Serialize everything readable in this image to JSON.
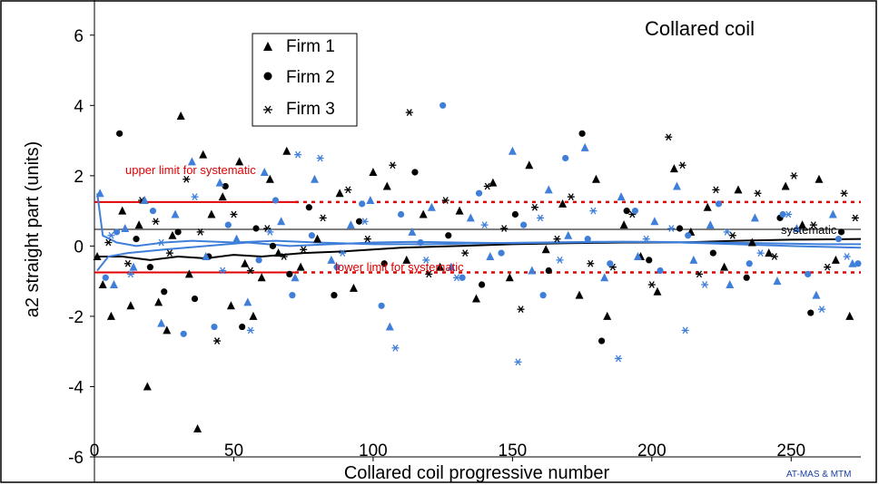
{
  "chart_data": {
    "type": "scatter",
    "title": "Collared coil",
    "xlabel": "Collared coil progressive number",
    "ylabel": "a2 straight part (units)",
    "xlim": [
      0,
      275
    ],
    "ylim": [
      -6,
      7
    ],
    "x_ticks": [
      "0",
      "50",
      "100",
      "150",
      "200",
      "250"
    ],
    "y_ticks": [
      "-6",
      "-4",
      "-2",
      "0",
      "2",
      "4",
      "6"
    ],
    "grid": false,
    "legend_position": "top-left",
    "legend": [
      {
        "name": "Firm 1",
        "marker": "triangle"
      },
      {
        "name": "Firm 2",
        "marker": "circle"
      },
      {
        "name": "Firm 3",
        "marker": "star"
      }
    ],
    "colors": {
      "black": "#000000",
      "blue": "#3f7fd9",
      "limit": "#e00000"
    },
    "limits": {
      "upper": {
        "value": 1.25,
        "label": "upper limit for systematic"
      },
      "lower": {
        "value": -0.75,
        "label": "lower limit for systematic"
      },
      "solid_until_x": 72
    },
    "systematic_label": "systematic",
    "credit": "AT-MAS & MTM",
    "series": [
      {
        "name": "Firm 1",
        "color": "#000000",
        "marker": "triangle",
        "points": [
          [
            1,
            -0.3
          ],
          [
            3,
            -1.1
          ],
          [
            6,
            -2.0
          ],
          [
            10,
            1.0
          ],
          [
            13,
            -1.7
          ],
          [
            16,
            0.6
          ],
          [
            19,
            -4.0
          ],
          [
            23,
            -1.6
          ],
          [
            26,
            -2.4
          ],
          [
            28,
            0.3
          ],
          [
            31,
            3.7
          ],
          [
            34,
            -0.8
          ],
          [
            37,
            -5.2
          ],
          [
            39,
            2.6
          ],
          [
            42,
            0.9
          ],
          [
            46,
            1.4
          ],
          [
            49,
            -1.7
          ],
          [
            52,
            2.4
          ],
          [
            54,
            -0.5
          ],
          [
            57,
            -2.0
          ],
          [
            60,
            -0.9
          ],
          [
            63,
            1.9
          ],
          [
            66,
            -0.2
          ],
          [
            69,
            2.7
          ],
          [
            74,
            -0.6
          ],
          [
            80,
            0.2
          ],
          [
            88,
            1.5
          ],
          [
            93,
            -1.2
          ],
          [
            100,
            2.1
          ],
          [
            105,
            1.7
          ],
          [
            112,
            -0.4
          ],
          [
            118,
            0.9
          ],
          [
            124,
            -0.6
          ],
          [
            131,
            1.0
          ],
          [
            137,
            -1.5
          ],
          [
            143,
            1.8
          ],
          [
            149,
            -0.9
          ],
          [
            156,
            2.3
          ],
          [
            162,
            -0.1
          ],
          [
            168,
            1.2
          ],
          [
            174,
            -1.4
          ],
          [
            180,
            1.9
          ],
          [
            184,
            -2.0
          ],
          [
            190,
            0.6
          ],
          [
            196,
            -0.3
          ],
          [
            202,
            -1.3
          ],
          [
            208,
            2.2
          ],
          [
            214,
            0.4
          ],
          [
            220,
            1.1
          ],
          [
            226,
            -0.6
          ],
          [
            231,
            1.6
          ],
          [
            236,
            0.1
          ],
          [
            242,
            -0.2
          ],
          [
            248,
            1.7
          ],
          [
            254,
            0.6
          ],
          [
            260,
            1.9
          ],
          [
            266,
            -0.4
          ],
          [
            271,
            -2.0
          ]
        ]
      },
      {
        "name": "Firm 2",
        "color": "#000000",
        "marker": "circle",
        "points": [
          [
            9,
            3.2
          ],
          [
            15,
            0.2
          ],
          [
            20,
            -0.6
          ],
          [
            25,
            -1.3
          ],
          [
            30,
            0.4
          ],
          [
            36,
            -1.5
          ],
          [
            41,
            -0.3
          ],
          [
            47,
            1.7
          ],
          [
            53,
            -2.3
          ],
          [
            58,
            0.5
          ],
          [
            64,
            0.0
          ],
          [
            70,
            -0.8
          ],
          [
            77,
            1.1
          ],
          [
            86,
            -1.4
          ],
          [
            95,
            0.7
          ],
          [
            104,
            -0.5
          ],
          [
            115,
            2.1
          ],
          [
            127,
            0.3
          ],
          [
            139,
            -1.1
          ],
          [
            151,
            0.9
          ],
          [
            163,
            -0.7
          ],
          [
            175,
            3.2
          ],
          [
            182,
            -2.7
          ],
          [
            191,
            1.0
          ],
          [
            199,
            -0.4
          ],
          [
            210,
            0.5
          ],
          [
            222,
            -0.2
          ],
          [
            234,
            -0.9
          ],
          [
            246,
            0.8
          ],
          [
            257,
            -1.9
          ],
          [
            268,
            0.4
          ]
        ]
      },
      {
        "name": "Firm 3",
        "color": "#000000",
        "marker": "star",
        "points": [
          [
            5,
            0.1
          ],
          [
            12,
            -0.5
          ],
          [
            17,
            1.3
          ],
          [
            22,
            0.7
          ],
          [
            27,
            -0.2
          ],
          [
            33,
            1.9
          ],
          [
            38,
            0.4
          ],
          [
            44,
            -2.7
          ],
          [
            50,
            0.9
          ],
          [
            56,
            -0.7
          ],
          [
            62,
            0.5
          ],
          [
            68,
            -0.3
          ],
          [
            75,
            -0.1
          ],
          [
            82,
            0.8
          ],
          [
            91,
            1.6
          ],
          [
            98,
            0.2
          ],
          [
            107,
            2.3
          ],
          [
            113,
            3.8
          ],
          [
            120,
            -0.8
          ],
          [
            126,
            1.3
          ],
          [
            133,
            -0.2
          ],
          [
            141,
            1.7
          ],
          [
            147,
            0.5
          ],
          [
            153,
            -1.8
          ],
          [
            158,
            1.1
          ],
          [
            166,
            0.2
          ],
          [
            171,
            1.4
          ],
          [
            178,
            -0.5
          ],
          [
            186,
            -0.6
          ],
          [
            193,
            0.9
          ],
          [
            200,
            -1.1
          ],
          [
            206,
            3.1
          ],
          [
            211,
            2.3
          ],
          [
            217,
            -0.8
          ],
          [
            223,
            1.6
          ],
          [
            229,
            0.3
          ],
          [
            238,
            1.5
          ],
          [
            244,
            -0.3
          ],
          [
            251,
            2.0
          ],
          [
            258,
            0.6
          ],
          [
            263,
            -0.6
          ],
          [
            269,
            1.5
          ],
          [
            273,
            0.8
          ]
        ]
      },
      {
        "name": "Firm 1",
        "color": "#3f7fd9",
        "marker": "triangle",
        "points": [
          [
            2,
            1.5
          ],
          [
            7,
            -1.1
          ],
          [
            11,
            0.5
          ],
          [
            14,
            -0.6
          ],
          [
            18,
            1.3
          ],
          [
            24,
            -2.2
          ],
          [
            29,
            0.9
          ],
          [
            35,
            2.4
          ],
          [
            40,
            -0.3
          ],
          [
            45,
            1.8
          ],
          [
            51,
            0.2
          ],
          [
            55,
            -1.6
          ],
          [
            61,
            2.1
          ],
          [
            67,
            0.7
          ],
          [
            72,
            -0.9
          ],
          [
            79,
            1.9
          ],
          [
            85,
            -0.4
          ],
          [
            92,
            0.6
          ],
          [
            99,
            1.3
          ],
          [
            106,
            -2.3
          ],
          [
            114,
            0.4
          ],
          [
            121,
            1.1
          ],
          [
            128,
            -0.6
          ],
          [
            135,
            0.8
          ],
          [
            142,
            -0.3
          ],
          [
            150,
            2.7
          ],
          [
            157,
            -0.7
          ],
          [
            163,
            1.6
          ],
          [
            170,
            0.3
          ],
          [
            176,
            2.8
          ],
          [
            183,
            -0.9
          ],
          [
            189,
            1.4
          ],
          [
            195,
            -0.3
          ],
          [
            201,
            0.7
          ],
          [
            209,
            1.7
          ],
          [
            215,
            -0.4
          ],
          [
            221,
            0.6
          ],
          [
            228,
            -1.1
          ],
          [
            237,
            0.8
          ],
          [
            245,
            -1.0
          ],
          [
            252,
            0.5
          ],
          [
            259,
            -1.4
          ],
          [
            265,
            0.9
          ],
          [
            272,
            -0.5
          ]
        ]
      },
      {
        "name": "Firm 2",
        "color": "#3f7fd9",
        "marker": "circle",
        "points": [
          [
            4,
            -0.9
          ],
          [
            8,
            0.4
          ],
          [
            21,
            1.0
          ],
          [
            32,
            -2.5
          ],
          [
            43,
            -2.3
          ],
          [
            48,
            0.6
          ],
          [
            59,
            -0.4
          ],
          [
            65,
            1.3
          ],
          [
            71,
            -1.4
          ],
          [
            78,
            0.3
          ],
          [
            87,
            -0.6
          ],
          [
            96,
            1.2
          ],
          [
            103,
            -1.7
          ],
          [
            110,
            0.9
          ],
          [
            117,
            0.1
          ],
          [
            125,
            4.0
          ],
          [
            132,
            -0.9
          ],
          [
            138,
            1.5
          ],
          [
            146,
            -0.2
          ],
          [
            154,
            0.6
          ],
          [
            161,
            -1.4
          ],
          [
            169,
            2.5
          ],
          [
            177,
            0.2
          ],
          [
            185,
            -0.5
          ],
          [
            194,
            1.0
          ],
          [
            203,
            -0.7
          ],
          [
            213,
            0.3
          ],
          [
            224,
            1.2
          ],
          [
            235,
            -0.5
          ],
          [
            247,
            0.9
          ],
          [
            256,
            -0.8
          ],
          [
            267,
            0.2
          ],
          [
            274,
            -0.5
          ]
        ]
      },
      {
        "name": "Firm 3",
        "color": "#3f7fd9",
        "marker": "star",
        "points": [
          [
            6,
            0.3
          ],
          [
            13,
            -0.8
          ],
          [
            24,
            0.1
          ],
          [
            36,
            1.4
          ],
          [
            46,
            -0.7
          ],
          [
            56,
            -2.4
          ],
          [
            63,
            0.4
          ],
          [
            73,
            2.6
          ],
          [
            81,
            2.5
          ],
          [
            89,
            -0.2
          ],
          [
            97,
            0.7
          ],
          [
            108,
            -2.9
          ],
          [
            119,
            -0.4
          ],
          [
            130,
            -0.9
          ],
          [
            140,
            0.6
          ],
          [
            152,
            -3.3
          ],
          [
            160,
            0.8
          ],
          [
            167,
            -0.4
          ],
          [
            179,
            1.0
          ],
          [
            188,
            -3.2
          ],
          [
            198,
            0.2
          ],
          [
            207,
            0.5
          ],
          [
            212,
            -2.4
          ],
          [
            219,
            -1.1
          ],
          [
            227,
            0.4
          ],
          [
            239,
            -0.2
          ],
          [
            249,
            0.9
          ],
          [
            261,
            -1.8
          ],
          [
            270,
            -0.3
          ]
        ]
      }
    ],
    "systematic_lines": [
      {
        "name": "Firm 1 systematic",
        "color": "#000000",
        "points": [
          [
            1,
            -0.3
          ],
          [
            10,
            -0.3
          ],
          [
            20,
            -0.4
          ],
          [
            30,
            -0.3
          ],
          [
            40,
            -0.35
          ],
          [
            50,
            -0.25
          ],
          [
            60,
            -0.3
          ],
          [
            75,
            -0.2
          ],
          [
            90,
            -0.15
          ],
          [
            110,
            -0.05
          ],
          [
            130,
            0.0
          ],
          [
            150,
            0.05
          ],
          [
            170,
            0.08
          ],
          [
            190,
            0.1
          ],
          [
            210,
            0.1
          ],
          [
            230,
            0.15
          ],
          [
            250,
            0.18
          ],
          [
            275,
            0.2
          ]
        ]
      },
      {
        "name": "Firm 2 systematic",
        "color": "#3f7fd9",
        "points": [
          [
            1,
            1.5
          ],
          [
            3,
            0.3
          ],
          [
            8,
            0.1
          ],
          [
            15,
            0.0
          ],
          [
            25,
            0.1
          ],
          [
            35,
            0.15
          ],
          [
            50,
            0.1
          ],
          [
            65,
            0.15
          ],
          [
            80,
            0.1
          ],
          [
            100,
            0.05
          ],
          [
            120,
            0.05
          ],
          [
            140,
            0.08
          ],
          [
            160,
            0.1
          ],
          [
            180,
            0.12
          ],
          [
            200,
            0.12
          ],
          [
            220,
            0.1
          ],
          [
            240,
            0.08
          ],
          [
            260,
            0.05
          ],
          [
            275,
            0.05
          ]
        ]
      },
      {
        "name": "Firm 3 systematic",
        "color": "#3f7fd9",
        "points": [
          [
            1,
            -0.7
          ],
          [
            5,
            -0.3
          ],
          [
            12,
            -0.2
          ],
          [
            25,
            -0.1
          ],
          [
            40,
            0.0
          ],
          [
            55,
            0.1
          ],
          [
            70,
            0.0
          ],
          [
            85,
            0.05
          ],
          [
            100,
            0.1
          ],
          [
            115,
            0.12
          ],
          [
            130,
            0.1
          ],
          [
            150,
            0.08
          ],
          [
            170,
            0.1
          ],
          [
            190,
            0.12
          ],
          [
            210,
            0.1
          ],
          [
            230,
            0.05
          ],
          [
            250,
            0.0
          ],
          [
            275,
            -0.05
          ]
        ]
      }
    ]
  }
}
